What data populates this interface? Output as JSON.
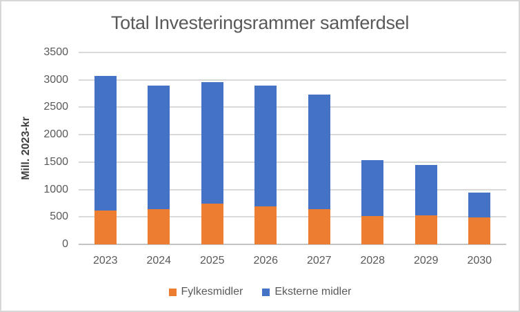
{
  "chart_data": {
    "type": "bar",
    "stacked": true,
    "title": "Total Investeringsrammer samferdsel",
    "xlabel": "",
    "ylabel": "Mill. 2023-kr",
    "ylim": [
      0,
      3500
    ],
    "yticks": [
      0,
      500,
      1000,
      1500,
      2000,
      2500,
      3000,
      3500
    ],
    "grid": true,
    "legend_position": "bottom",
    "categories": [
      "2023",
      "2024",
      "2025",
      "2026",
      "2027",
      "2028",
      "2029",
      "2030"
    ],
    "series": [
      {
        "name": "Fylkesmidler",
        "color": "#ED7D31",
        "values": [
          620,
          640,
          740,
          690,
          640,
          520,
          530,
          490
        ]
      },
      {
        "name": "Eksterne midler",
        "color": "#4472C4",
        "values": [
          2450,
          2260,
          2220,
          2210,
          2090,
          1020,
          920,
          450
        ]
      }
    ],
    "totals": [
      3070,
      2900,
      2960,
      2900,
      2730,
      1540,
      1450,
      940
    ]
  },
  "style": {
    "grid_color": "#D9D9D9",
    "axis_line_color": "#C3C3C3",
    "title_color": "#595959",
    "tick_label_color": "#595959",
    "y_axis_title_color": "#404040",
    "frame_border_color": "#D7D7D7",
    "background": "#FFFFFF"
  }
}
